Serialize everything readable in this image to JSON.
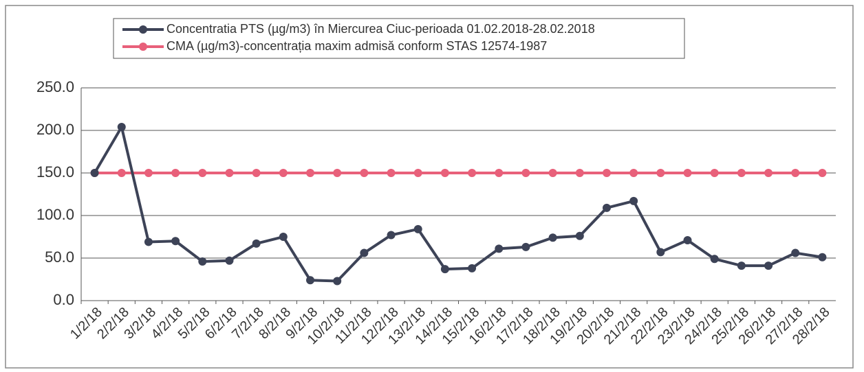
{
  "chart_data": {
    "type": "line",
    "categories": [
      "1/2/18",
      "2/2/18",
      "3/2/18",
      "4/2/18",
      "5/2/18",
      "6/2/18",
      "7/2/18",
      "8/2/18",
      "9/2/18",
      "10/2/18",
      "11/2/18",
      "12/2/18",
      "13/2/18",
      "14/2/18",
      "15/2/18",
      "16/2/18",
      "17/2/18",
      "18/2/18",
      "19/2/18",
      "20/2/18",
      "21/2/18",
      "22/2/18",
      "23/2/18",
      "24/2/18",
      "25/2/18",
      "26/2/18",
      "27/2/18",
      "28/2/18"
    ],
    "series": [
      {
        "name": "Concentratia PTS (µg/m3) în Miercurea Ciuc-perioada 01.02.2018-28.02.2018",
        "color": "#3d4357",
        "values": [
          150,
          204,
          69,
          70,
          46,
          47,
          67,
          75,
          24,
          23,
          56,
          77,
          84,
          37,
          38,
          61,
          63,
          74,
          76,
          109,
          117,
          57,
          71,
          49,
          41,
          41,
          56,
          51
        ]
      },
      {
        "name": "CMA (µg/m3)-concentrația maxim admisă conform STAS 12574-1987",
        "color": "#e8607a",
        "values": [
          150,
          150,
          150,
          150,
          150,
          150,
          150,
          150,
          150,
          150,
          150,
          150,
          150,
          150,
          150,
          150,
          150,
          150,
          150,
          150,
          150,
          150,
          150,
          150,
          150,
          150,
          150,
          150
        ]
      }
    ],
    "ylim": [
      0,
      250
    ],
    "yticks": [
      {
        "value": 0,
        "label": "0.0"
      },
      {
        "value": 50,
        "label": "50.0"
      },
      {
        "value": 100,
        "label": "100.0"
      },
      {
        "value": 150,
        "label": "150.0"
      },
      {
        "value": 200,
        "label": "200.0"
      },
      {
        "value": 250,
        "label": "250.0"
      }
    ],
    "grid": true
  }
}
